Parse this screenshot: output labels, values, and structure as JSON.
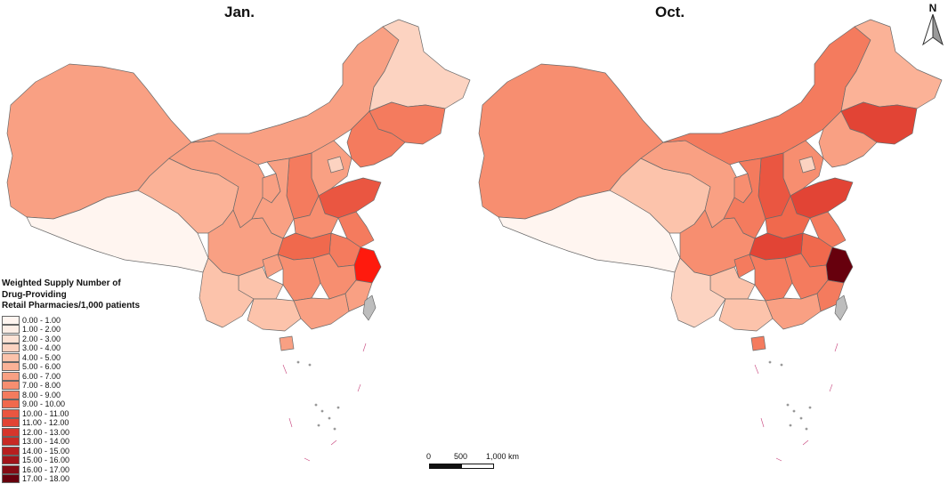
{
  "panels": [
    {
      "title": "Jan."
    },
    {
      "title": "Oct."
    }
  ],
  "north_arrow": {
    "label": "N"
  },
  "scale_bar": {
    "labels": [
      "0",
      "500",
      "1,000 km"
    ]
  },
  "legend": {
    "title_lines": [
      "Weighted Supply Number of",
      "Drug-Providing",
      "Retail Pharmacies/1,000 patients"
    ],
    "classes": [
      {
        "label": "0.00 - 1.00",
        "color": "#fff5f0"
      },
      {
        "label": "1.00 - 2.00",
        "color": "#fdeee6"
      },
      {
        "label": "2.00 - 3.00",
        "color": "#fde2d5"
      },
      {
        "label": "3.00 - 4.00",
        "color": "#fcd3c1"
      },
      {
        "label": "4.00 - 5.00",
        "color": "#fcc3ab"
      },
      {
        "label": "5.00 - 6.00",
        "color": "#fbb297"
      },
      {
        "label": "6.00 - 7.00",
        "color": "#f9a083"
      },
      {
        "label": "7.00 - 8.00",
        "color": "#f78e70"
      },
      {
        "label": "8.00 - 9.00",
        "color": "#f47b5e"
      },
      {
        "label": "9.00 - 10.00",
        "color": "#f0694d"
      },
      {
        "label": "10.00 - 11.00",
        "color": "#ea5641"
      },
      {
        "label": "11.00 - 12.00",
        "color": "#e24435"
      },
      {
        "label": "12.00 - 13.00",
        "color": "#d6362c"
      },
      {
        "label": "13.00 - 14.00",
        "color": "#c82a24"
      },
      {
        "label": "14.00 - 15.00",
        "color": "#b71f1f"
      },
      {
        "label": "15.00 - 16.00",
        "color": "#a1151a"
      },
      {
        "label": "16.00 - 17.00",
        "color": "#840c14"
      },
      {
        "label": "17.00 - 18.00",
        "color": "#67000d"
      }
    ]
  }
}
